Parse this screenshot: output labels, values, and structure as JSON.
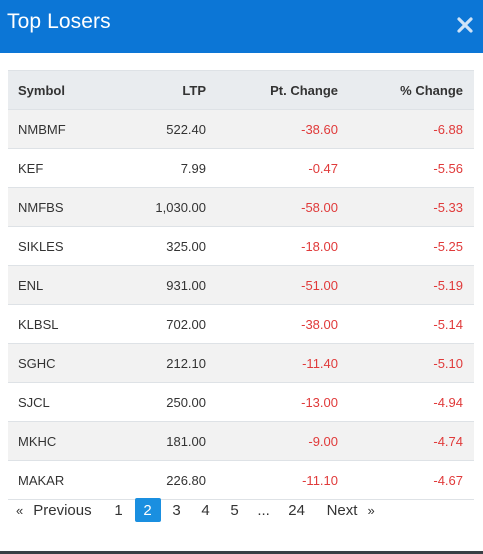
{
  "header": {
    "title": "Top Losers",
    "close_icon": "close-icon"
  },
  "table": {
    "columns": [
      "Symbol",
      "LTP",
      "Pt. Change",
      "% Change"
    ],
    "rows": [
      {
        "symbol": "NMBMF",
        "ltp": "522.40",
        "pt_change": "-38.60",
        "pct_change": "-6.88"
      },
      {
        "symbol": "KEF",
        "ltp": "7.99",
        "pt_change": "-0.47",
        "pct_change": "-5.56"
      },
      {
        "symbol": "NMFBS",
        "ltp": "1,030.00",
        "pt_change": "-58.00",
        "pct_change": "-5.33"
      },
      {
        "symbol": "SIKLES",
        "ltp": "325.00",
        "pt_change": "-18.00",
        "pct_change": "-5.25"
      },
      {
        "symbol": "ENL",
        "ltp": "931.00",
        "pt_change": "-51.00",
        "pct_change": "-5.19"
      },
      {
        "symbol": "KLBSL",
        "ltp": "702.00",
        "pt_change": "-38.00",
        "pct_change": "-5.14"
      },
      {
        "symbol": "SGHC",
        "ltp": "212.10",
        "pt_change": "-11.40",
        "pct_change": "-5.10"
      },
      {
        "symbol": "SJCL",
        "ltp": "250.00",
        "pt_change": "-13.00",
        "pct_change": "-4.94"
      },
      {
        "symbol": "MKHC",
        "ltp": "181.00",
        "pt_change": "-9.00",
        "pct_change": "-4.74"
      },
      {
        "symbol": "MAKAR",
        "ltp": "226.80",
        "pt_change": "-11.10",
        "pct_change": "-4.67"
      }
    ]
  },
  "pagination": {
    "prev_arrow": "«",
    "prev_label": "Previous",
    "pages": [
      "1",
      "2",
      "3",
      "4",
      "5"
    ],
    "active_page": "2",
    "ellipsis": "...",
    "last_page": "24",
    "next_label": "Next",
    "next_arrow": "»"
  },
  "colors": {
    "header_bg": "#0c76d6",
    "negative": "#e03a3a",
    "active_page_bg": "#1a8fe0"
  }
}
